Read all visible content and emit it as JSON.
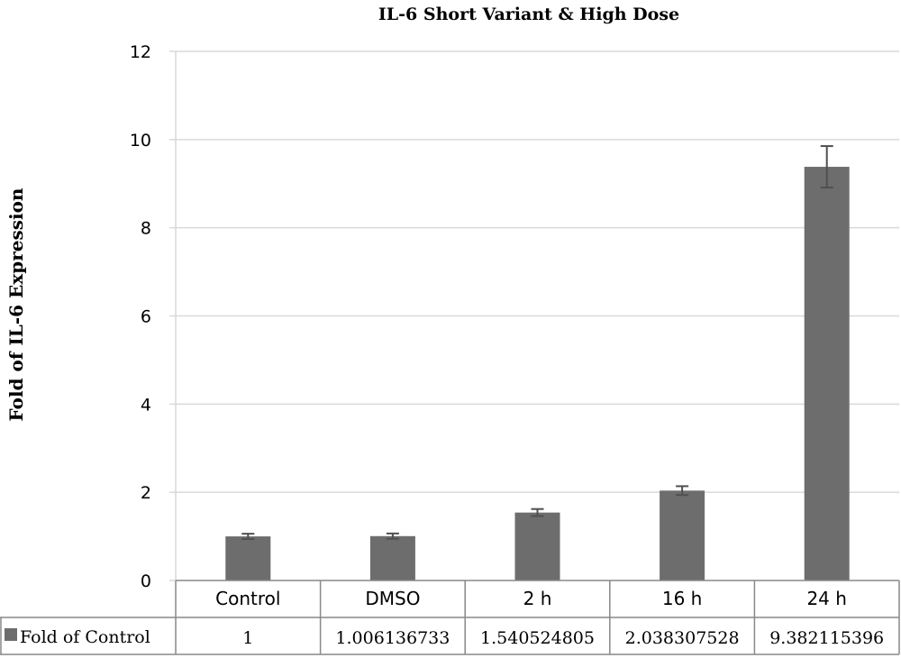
{
  "chart_data": {
    "type": "bar",
    "title": "IL-6 Short Variant & High Dose",
    "ylabel": "Fold of IL-6 Expression",
    "xlabel": "",
    "ylim": [
      0,
      12
    ],
    "yticks": [
      0,
      2,
      4,
      6,
      8,
      10,
      12
    ],
    "grid": true,
    "categories": [
      "Control",
      "DMSO",
      "2 h",
      "16 h",
      "24 h"
    ],
    "series": [
      {
        "name": "Fold of Control",
        "values": [
          1,
          1.006136733,
          1.540524805,
          2.038307528,
          9.382115396
        ],
        "value_labels": [
          "1",
          "1.006136733",
          "1.540524805",
          "2.038307528",
          "9.382115396"
        ],
        "error": [
          0.06,
          0.06,
          0.08,
          0.1,
          0.47
        ],
        "color": "#6d6d6d"
      }
    ],
    "data_table": true
  },
  "colors": {
    "bar": "#6d6d6d",
    "error_bar": "#505050",
    "grid": "#d9d9d9",
    "table_border": "#888888"
  }
}
